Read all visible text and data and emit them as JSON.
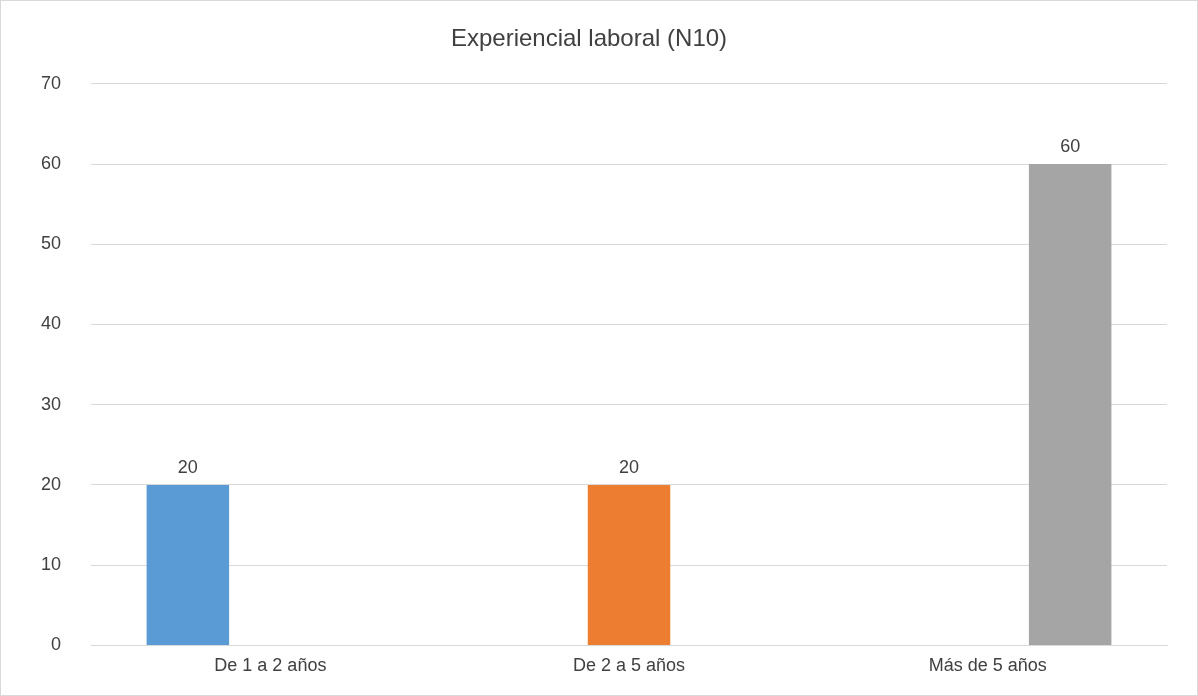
{
  "chart_data": {
    "type": "bar",
    "title": "Experiencial laboral (N10)",
    "categories": [
      "De 1 a 2 años",
      "De 2 a 5 años",
      "Más de 5 años"
    ],
    "series": [
      {
        "color": "#5b9bd5",
        "values": [
          20,
          null,
          null
        ]
      },
      {
        "color": "#ed7d31",
        "values": [
          null,
          20,
          null
        ]
      },
      {
        "color": "#a5a5a5",
        "values": [
          null,
          null,
          60
        ]
      }
    ],
    "ylim": [
      0,
      70
    ],
    "yticks": [
      0,
      10,
      20,
      30,
      40,
      50,
      60,
      70
    ],
    "grid": "y",
    "data_labels": true,
    "legend": false
  }
}
